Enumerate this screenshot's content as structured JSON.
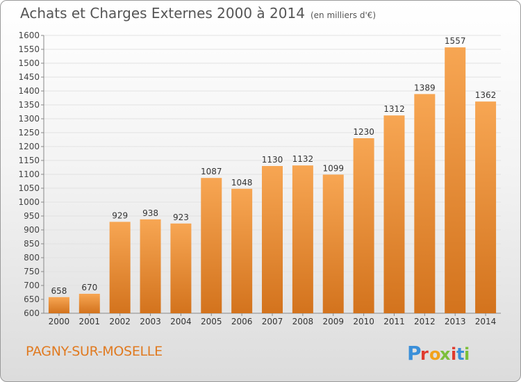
{
  "header": {
    "title": "Achats et Charges Externes 2000 à 2014",
    "unit": "(en milliers d'€)"
  },
  "commune": "PAGNY-SUR-MOSELLE",
  "logo": {
    "letters": [
      "P",
      "r",
      "o",
      "x",
      "i",
      "t",
      "i"
    ]
  },
  "colors": {
    "bar_light": "#f7a653",
    "bar_dark": "#d3731d",
    "commune_text": "#e07a20",
    "title_text": "#555555"
  },
  "chart_data": {
    "type": "bar",
    "title": "Achats et Charges Externes 2000 à 2014",
    "subtitle": "(en milliers d'€)",
    "xlabel": "",
    "ylabel": "",
    "categories": [
      "2000",
      "2001",
      "2002",
      "2003",
      "2004",
      "2005",
      "2006",
      "2007",
      "2008",
      "2009",
      "2010",
      "2011",
      "2012",
      "2013",
      "2014"
    ],
    "values": [
      658,
      670,
      929,
      938,
      923,
      1087,
      1048,
      1130,
      1132,
      1099,
      1230,
      1312,
      1389,
      1557,
      1362
    ],
    "ylim": [
      600,
      1600
    ],
    "yticks": [
      600,
      650,
      700,
      750,
      800,
      850,
      900,
      950,
      1000,
      1050,
      1100,
      1150,
      1200,
      1250,
      1300,
      1350,
      1400,
      1450,
      1500,
      1550,
      1600
    ],
    "grid": true,
    "data_labels": true
  }
}
